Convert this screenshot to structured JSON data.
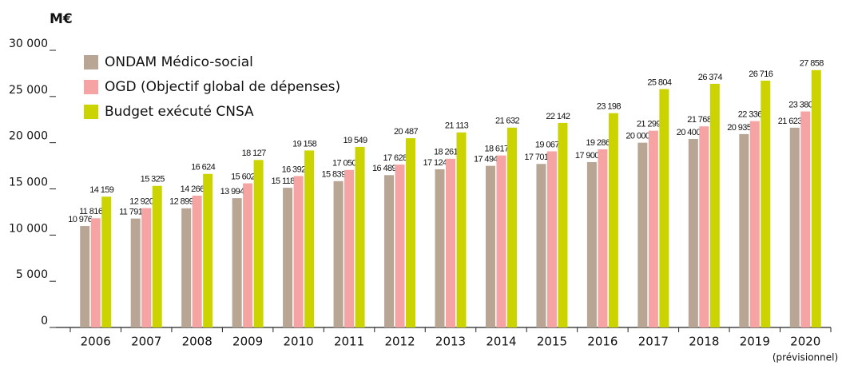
{
  "chart_data": {
    "type": "bar",
    "unit_label": "M€",
    "annotation": "(prévisionnel)",
    "categories": [
      "2006",
      "2007",
      "2008",
      "2009",
      "2010",
      "2011",
      "2012",
      "2013",
      "2014",
      "2015",
      "2016",
      "2017",
      "2018",
      "2019",
      "2020"
    ],
    "series": [
      {
        "name": "ONDAM Médico-social",
        "color": "#b8a594",
        "values": [
          10976,
          11791,
          12899,
          13994,
          15118,
          15839,
          16489,
          17124,
          17494,
          17701,
          17900,
          20000,
          20400,
          20935,
          21623
        ],
        "value_labels": [
          "10 976",
          "11 791",
          "12 899",
          "13 994",
          "15 118",
          "15 839",
          "16 489",
          "17 124",
          "17 494",
          "17 701",
          "17 900",
          "20 000",
          "20 400",
          "20 935",
          "21 623"
        ]
      },
      {
        "name": "OGD (Objectif global de dépenses)",
        "color": "#f5a3a3",
        "values": [
          11816,
          12920,
          14266,
          15602,
          16392,
          17050,
          17628,
          18261,
          18617,
          19067,
          19286,
          21299,
          21768,
          22336,
          23380
        ],
        "value_labels": [
          "11 816",
          "12 920",
          "14 266",
          "15 602",
          "16 392",
          "17 050",
          "17 628",
          "18 261",
          "18 617",
          "19 067",
          "19 286",
          "21 299",
          "21 768",
          "22 336",
          "23 380"
        ]
      },
      {
        "name": "Budget exécuté CNSA",
        "color": "#cbd400",
        "values": [
          14159,
          15325,
          16624,
          18127,
          19158,
          19549,
          20487,
          21113,
          21632,
          22142,
          23198,
          25804,
          26374,
          26716,
          27858
        ],
        "value_labels": [
          "14 159",
          "15 325",
          "16 624",
          "18 127",
          "19 158",
          "19 549",
          "20 487",
          "21 113",
          "21 632",
          "22 142",
          "23 198",
          "25 804",
          "26 374",
          "26 716",
          "27 858"
        ]
      }
    ],
    "ylim": [
      0,
      30000
    ],
    "yticks": [
      0,
      {
        "value": 5000,
        "label": "5 000"
      },
      {
        "value": 10000,
        "label": "10 000"
      },
      {
        "value": 15000,
        "label": "15 000"
      },
      {
        "value": 20000,
        "label": "20 000"
      },
      {
        "value": 25000,
        "label": "25 000"
      },
      {
        "value": 30000,
        "label": "30 000"
      }
    ],
    "legend": "top-left",
    "grid": false
  }
}
